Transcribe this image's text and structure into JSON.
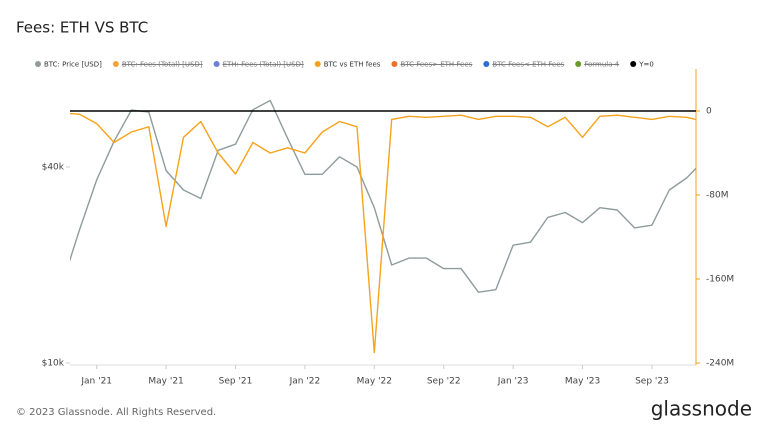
{
  "chart_data": {
    "type": "line",
    "title": "Fees: ETH VS BTC",
    "footer": "© 2023 Glassnode. All Rights Reserved.",
    "brand": "glassnode",
    "x": [
      "2020-11",
      "2020-12",
      "2021-01",
      "2021-02",
      "2021-03",
      "2021-04",
      "2021-05",
      "2021-06",
      "2021-07",
      "2021-08",
      "2021-09",
      "2021-10",
      "2021-11",
      "2021-12",
      "2022-01",
      "2022-02",
      "2022-03",
      "2022-04",
      "2022-05",
      "2022-06",
      "2022-07",
      "2022-08",
      "2022-09",
      "2022-10",
      "2022-11",
      "2022-12",
      "2023-01",
      "2023-02",
      "2023-03",
      "2023-04",
      "2023-05",
      "2023-06",
      "2023-07",
      "2023-08",
      "2023-09",
      "2023-10",
      "2023-11",
      "2023-12"
    ],
    "xlim": [
      "2020-11",
      "2023-12"
    ],
    "xticks": [
      {
        "value": "2021-01",
        "label": "Jan '21"
      },
      {
        "value": "2021-05",
        "label": "May '21"
      },
      {
        "value": "2021-09",
        "label": "Sep '21"
      },
      {
        "value": "2022-01",
        "label": "Jan '22"
      },
      {
        "value": "2022-05",
        "label": "May '22"
      },
      {
        "value": "2022-09",
        "label": "Sep '22"
      },
      {
        "value": "2023-01",
        "label": "Jan '23"
      },
      {
        "value": "2023-05",
        "label": "May '23"
      },
      {
        "value": "2023-09",
        "label": "Sep '23"
      }
    ],
    "ylim": [
      10000,
      80000
    ],
    "log_y": true,
    "yticks": [
      {
        "value": 10000,
        "label": "$10k"
      },
      {
        "value": 40000,
        "label": "$40k"
      }
    ],
    "y2lim": [
      -240000000,
      40000000
    ],
    "y2ticks": [
      0,
      {
        "value": -80000000,
        "label": "-80M"
      },
      {
        "value": -160000000,
        "label": "-160M"
      },
      {
        "value": -240000000,
        "label": "-240M"
      }
    ],
    "grid": false,
    "series": [
      {
        "name": "BTC: Price [USD]",
        "color": "#8f9c9c",
        "values": [
          17400,
          25600,
          36500,
          48000,
          59800,
          59000,
          39000,
          34000,
          32000,
          45000,
          47000,
          60000,
          64000,
          49000,
          38000,
          38000,
          43000,
          40000,
          30000,
          20000,
          21000,
          21000,
          19500,
          19500,
          16500,
          16800,
          23000,
          23500,
          28000,
          29000,
          27000,
          30000,
          29500,
          26000,
          26500,
          34000,
          37000,
          42000
        ]
      },
      {
        "name": "BTC: Fees (Total) [USD]",
        "color": "#f2a33a",
        "hidden": true
      },
      {
        "name": "ETH: Fees (Total) [USD]",
        "color": "#6a7fdb",
        "hidden": true
      },
      {
        "name": "BTC vs ETH fees",
        "color": "#f7a21b",
        "axis": "y2",
        "values": [
          -2000000,
          -3000000,
          -12000000,
          -30000000,
          -20000000,
          -15000000,
          -110000000,
          -25000000,
          -10000000,
          -40000000,
          -60000000,
          -30000000,
          -40000000,
          -35000000,
          -40000000,
          -20000000,
          -10000000,
          -15000000,
          -230000000,
          -8000000,
          -5000000,
          -6000000,
          -5000000,
          -4000000,
          -8000000,
          -5000000,
          -5000000,
          -6000000,
          -15000000,
          -6000000,
          -25000000,
          -5000000,
          -4000000,
          -6000000,
          -8000000,
          -5000000,
          -6000000,
          -10000000
        ]
      },
      {
        "name": "BTC Fees> ETH Fees",
        "color": "#e8742c",
        "hidden": true
      },
      {
        "name": "BTC Fees< ETH Fees",
        "color": "#2b6fd6",
        "hidden": true
      },
      {
        "name": "Formula 4",
        "color": "#6b9a2b",
        "hidden": true
      },
      {
        "name": "Y=0",
        "color": "#000000",
        "axis": "y2",
        "hline": 0
      }
    ]
  }
}
